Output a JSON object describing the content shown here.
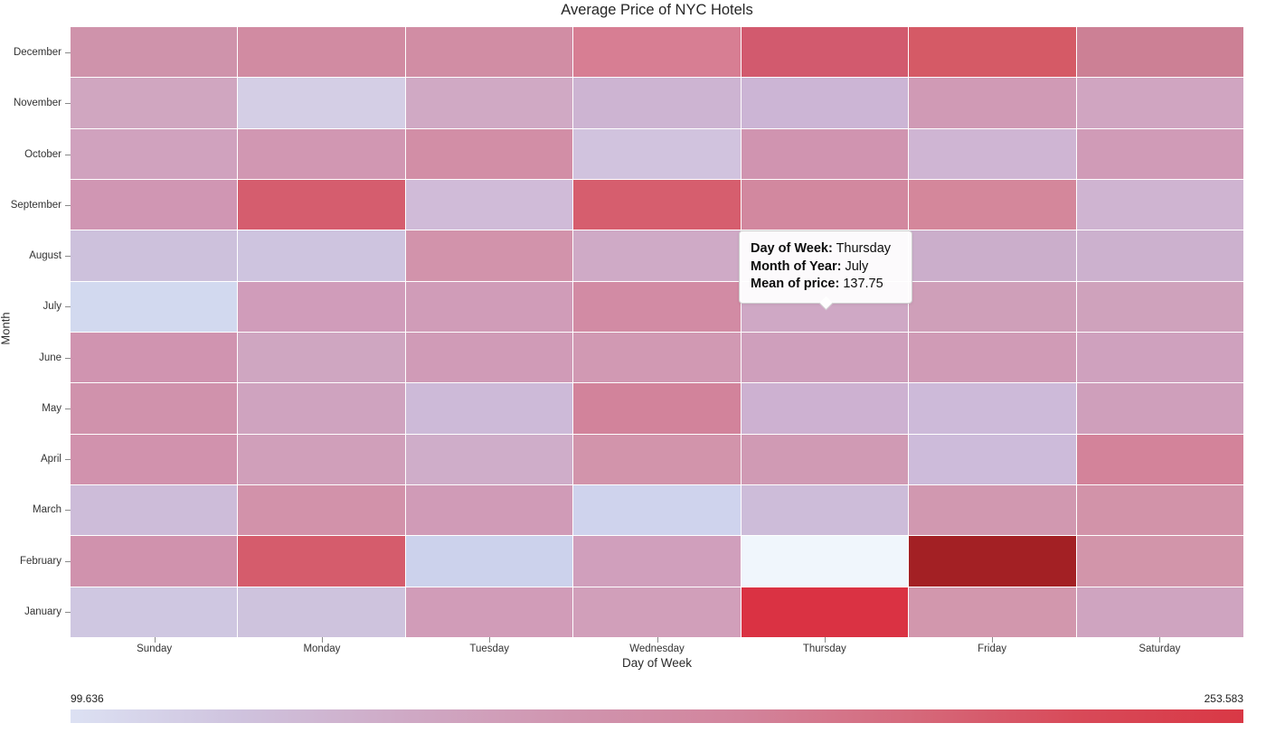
{
  "chart_data": {
    "type": "heatmap",
    "title": "Average Price of NYC Hotels",
    "xlabel": "Day of Week",
    "ylabel": "Month",
    "legend_position": "bottom",
    "grid": false,
    "x_categories": [
      "Sunday",
      "Monday",
      "Tuesday",
      "Wednesday",
      "Thursday",
      "Friday",
      "Saturday"
    ],
    "y_categories": [
      "December",
      "November",
      "October",
      "September",
      "August",
      "July",
      "June",
      "May",
      "April",
      "March",
      "February",
      "January"
    ],
    "color_scale": {
      "min": 99.636,
      "max": 253.583,
      "min_label": "99.636",
      "max_label": "253.583",
      "gradient": [
        "#dce1f3",
        "#cfc3de",
        "#cfa9c5",
        "#d094ae",
        "#d2849c",
        "#d56a7c",
        "#d84a59",
        "#d93845"
      ]
    },
    "rows": [
      {
        "month": "December",
        "colors": [
          "#cf93ab",
          "#d18ba2",
          "#d18da4",
          "#d77e93",
          "#d25a6e",
          "#d55a66",
          "#cc8095"
        ],
        "values": [
          155,
          161,
          160,
          172,
          207,
          210,
          167
        ]
      },
      {
        "month": "November",
        "colors": [
          "#d0a6c0",
          "#d4cee5",
          "#d0a9c4",
          "#cdb4d2",
          "#ccb5d5",
          "#d09ab5",
          "#d0a5c1"
        ],
        "values": [
          140,
          117,
          138,
          128,
          127,
          147,
          140
        ]
      },
      {
        "month": "October",
        "colors": [
          "#d0a2be",
          "#d197b2",
          "#d28ea6",
          "#d1c3de",
          "#d094b0",
          "#cfb5d3",
          "#d09bb7"
        ],
        "values": [
          142,
          150,
          159,
          121,
          152,
          127,
          146
        ]
      },
      {
        "month": "September",
        "colors": [
          "#d096b3",
          "#d55d6e",
          "#d0bbd8",
          "#d65e6e",
          "#d2889f",
          "#d4879b",
          "#cfb4d1"
        ],
        "values": [
          151,
          206,
          125,
          208,
          164,
          165,
          128
        ]
      },
      {
        "month": "August",
        "colors": [
          "#cdc1dc",
          "#cec4df",
          "#d293ab",
          "#cfaac6",
          "#cdadca",
          "#cbaecb",
          "#ccb1ce"
        ],
        "values": [
          119,
          118,
          155,
          136,
          134,
          135,
          132
        ]
      },
      {
        "month": "July",
        "colors": [
          "#d2d9ef",
          "#d09cba",
          "#d09cb8",
          "#d28ba4",
          "#cfa8c5",
          "#cf9fb9",
          "#cfa2bc"
        ],
        "values": [
          106,
          144,
          145,
          160,
          137.75,
          146,
          142
        ]
      },
      {
        "month": "June",
        "colors": [
          "#d094b0",
          "#cfa6c1",
          "#d09bb7",
          "#d199b3",
          "#cf9fbc",
          "#d09bb6",
          "#cfa1be"
        ],
        "values": [
          153,
          139,
          146,
          148,
          142,
          146,
          141
        ]
      },
      {
        "month": "May",
        "colors": [
          "#d092ac",
          "#cfa3bf",
          "#cdbad8",
          "#d2839b",
          "#cdb1d1",
          "#cdbad9",
          "#cf9fbb"
        ],
        "values": [
          156,
          141,
          125,
          169,
          131,
          125,
          145
        ]
      },
      {
        "month": "April",
        "colors": [
          "#d192ad",
          "#d09fba",
          "#cfadc9",
          "#d294ab",
          "#d09ab4",
          "#cdbbda",
          "#d3839a"
        ],
        "values": [
          155,
          144,
          134,
          154,
          148,
          124,
          170
        ]
      },
      {
        "month": "March",
        "colors": [
          "#cdbcd9",
          "#d292aa",
          "#d09bb7",
          "#cfd3ed",
          "#cdbcd9",
          "#d198b0",
          "#d293a9"
        ],
        "values": [
          124,
          157,
          146,
          108,
          124,
          150,
          156
        ]
      },
      {
        "month": "February",
        "colors": [
          "#d092ad",
          "#d55c6c",
          "#ccd2ec",
          "#d09fbc",
          "#f0f6fc",
          "#a32024",
          "#d295aa"
        ],
        "values": [
          154,
          207,
          110,
          143,
          99.64,
          253.58,
          153
        ]
      },
      {
        "month": "January",
        "colors": [
          "#cfc7e1",
          "#cec3dd",
          "#d19cb8",
          "#d19fba",
          "#da3243",
          "#d297ad",
          "#cfa4c0"
        ],
        "values": [
          118,
          120,
          145,
          144,
          244,
          152,
          140
        ]
      }
    ]
  },
  "tooltip": {
    "rows": [
      {
        "label": "Day of Week:",
        "value": "Thursday"
      },
      {
        "label": "Month of Year:",
        "value": "July"
      },
      {
        "label": "Mean of price:",
        "value": "137.75"
      }
    ]
  }
}
